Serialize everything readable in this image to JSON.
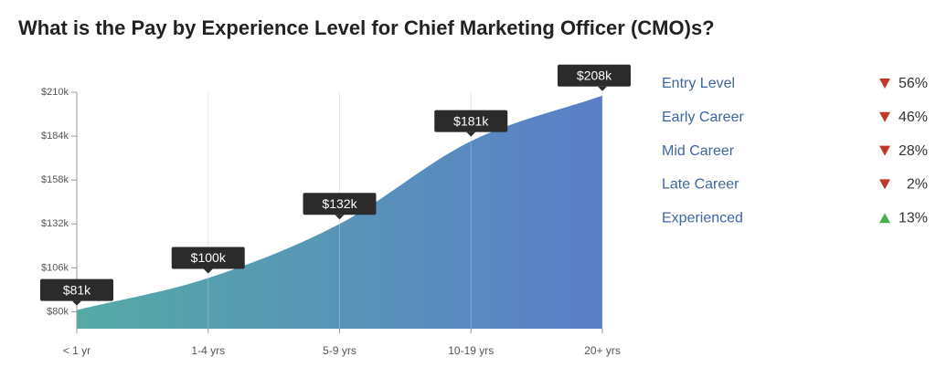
{
  "chart_data": {
    "type": "area",
    "title": "What is the Pay by Experience Level for Chief Marketing Officer (CMO)s?",
    "categories": [
      "< 1 yr",
      "1-4 yrs",
      "5-9 yrs",
      "10-19 yrs",
      "20+ yrs"
    ],
    "values": [
      81,
      100,
      132,
      181,
      208
    ],
    "value_labels": [
      "$81k",
      "$100k",
      "$132k",
      "$181k",
      "$208k"
    ],
    "colors": [
      "#55aaa6",
      "#5b7ec9"
    ],
    "ylim": [
      70,
      210
    ],
    "yticks": [
      {
        "value": 80,
        "label": "$80k"
      },
      {
        "value": 106,
        "label": "$106k"
      },
      {
        "value": 132,
        "label": "$132k"
      },
      {
        "value": 158,
        "label": "$158k"
      },
      {
        "value": 184,
        "label": "$184k"
      },
      {
        "value": 210,
        "label": "$210k"
      }
    ],
    "grid": true
  },
  "summary": {
    "items": [
      {
        "label": "Entry Level",
        "direction": "down",
        "change": "56%"
      },
      {
        "label": "Early Career",
        "direction": "down",
        "change": "46%"
      },
      {
        "label": "Mid Career",
        "direction": "down",
        "change": "28%"
      },
      {
        "label": "Late Career",
        "direction": "down",
        "change": "2%"
      },
      {
        "label": "Experienced",
        "direction": "up",
        "change": "13%"
      }
    ]
  }
}
